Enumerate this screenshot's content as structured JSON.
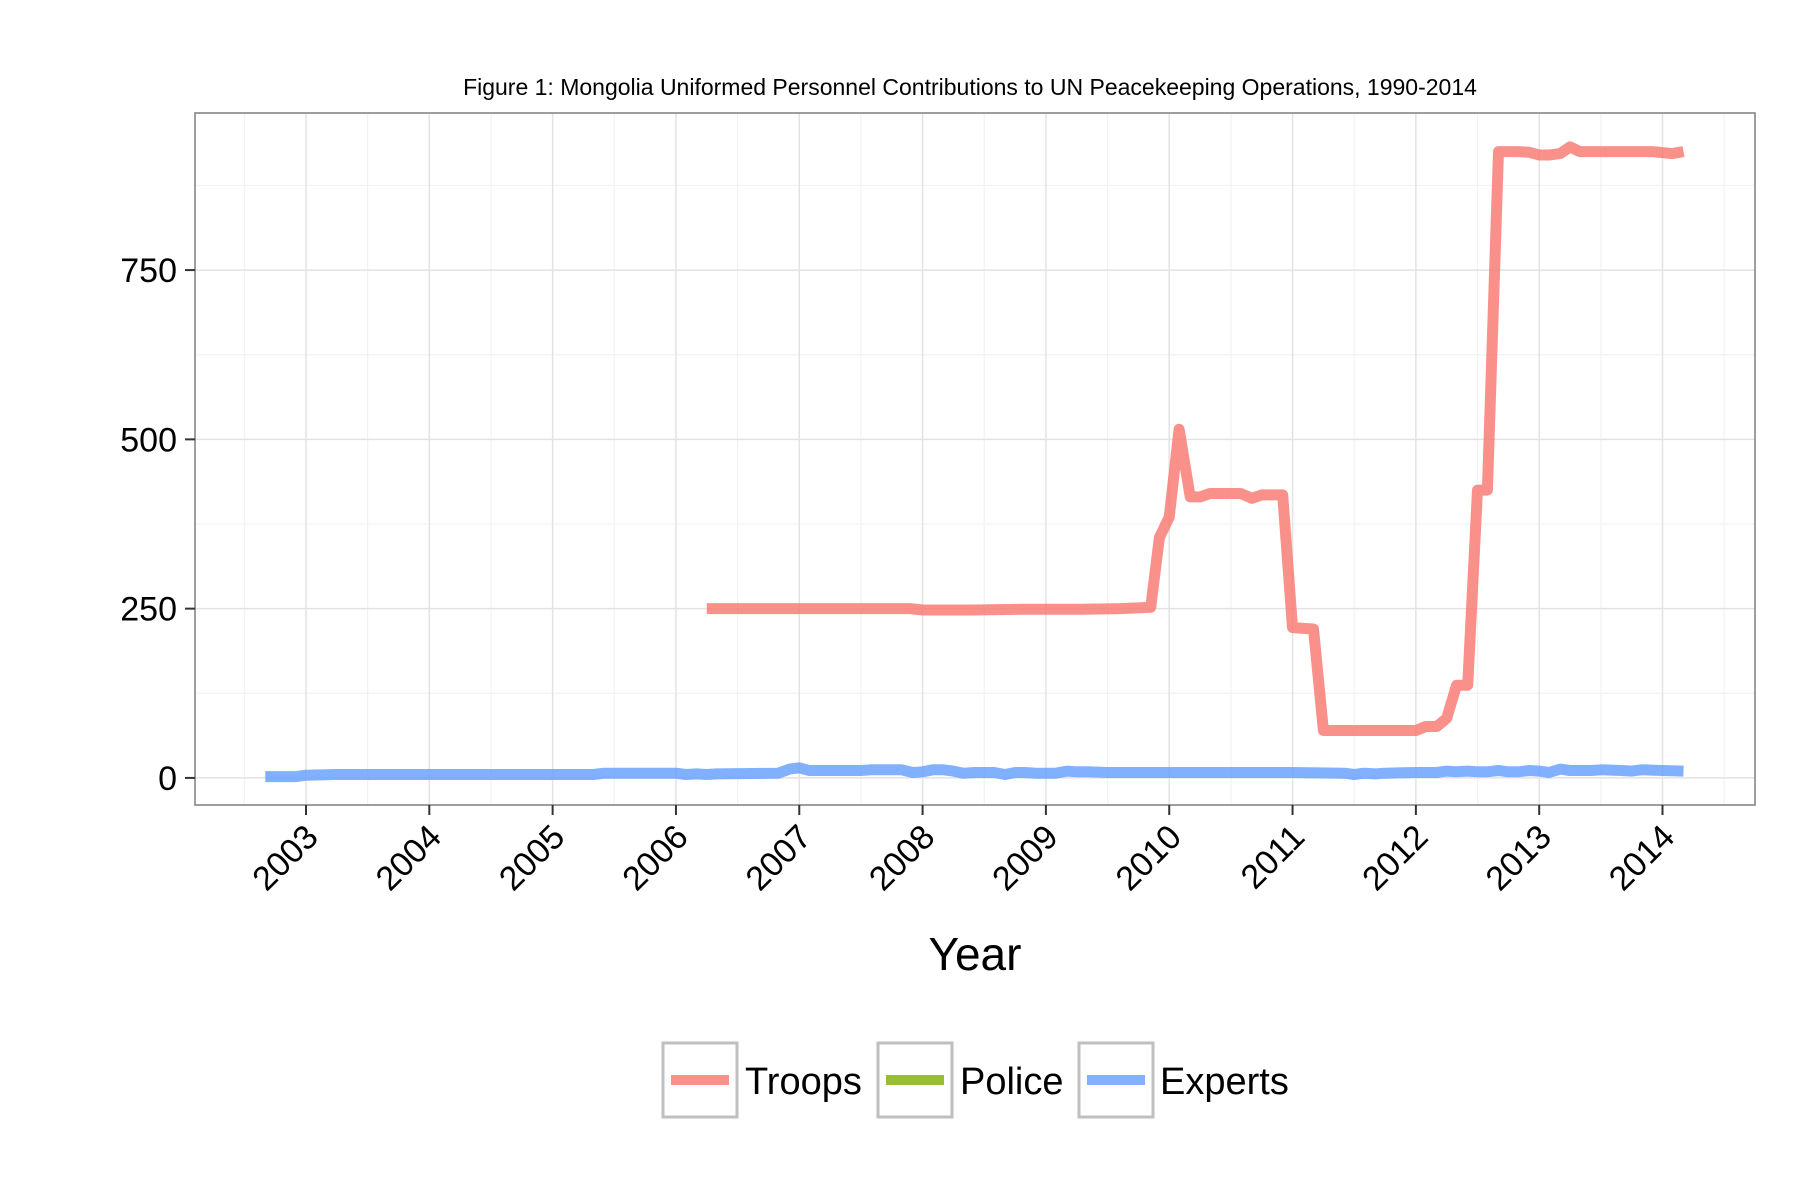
{
  "chart_data": {
    "type": "line",
    "title": "Figure 1: Mongolia Uniformed Personnel Contributions to UN Peacekeeping Operations, 1990-2014",
    "xlabel": "Year",
    "ylabel": "",
    "x_ticks": [
      "2003",
      "2004",
      "2005",
      "2006",
      "2007",
      "2008",
      "2009",
      "2010",
      "2011",
      "2012",
      "2013",
      "2014"
    ],
    "y_ticks": [
      0,
      250,
      500,
      750
    ],
    "xlim": [
      2002.1,
      2014.75
    ],
    "ylim": [
      -40,
      982
    ],
    "grid": true,
    "legend_position": "bottom",
    "series": [
      {
        "name": "Troops",
        "color": "#F8766D",
        "points": [
          [
            2006.25,
            250
          ],
          [
            2007.0,
            250
          ],
          [
            2007.5,
            250
          ],
          [
            2007.9,
            250
          ],
          [
            2008.0,
            248
          ],
          [
            2008.4,
            248
          ],
          [
            2008.8,
            249
          ],
          [
            2009.3,
            249
          ],
          [
            2009.6,
            250
          ],
          [
            2009.85,
            252
          ],
          [
            2009.92,
            355
          ],
          [
            2010.0,
            385
          ],
          [
            2010.08,
            515
          ],
          [
            2010.17,
            415
          ],
          [
            2010.25,
            415
          ],
          [
            2010.33,
            420
          ],
          [
            2010.58,
            420
          ],
          [
            2010.67,
            413
          ],
          [
            2010.75,
            418
          ],
          [
            2010.92,
            418
          ],
          [
            2011.0,
            222
          ],
          [
            2011.17,
            220
          ],
          [
            2011.25,
            70
          ],
          [
            2011.5,
            70
          ],
          [
            2011.75,
            70
          ],
          [
            2012.0,
            70
          ],
          [
            2012.08,
            76
          ],
          [
            2012.17,
            76
          ],
          [
            2012.25,
            88
          ],
          [
            2012.33,
            137
          ],
          [
            2012.42,
            137
          ],
          [
            2012.5,
            425
          ],
          [
            2012.58,
            425
          ],
          [
            2012.67,
            925
          ],
          [
            2012.83,
            925
          ],
          [
            2012.92,
            924
          ],
          [
            2013.0,
            920
          ],
          [
            2013.08,
            920
          ],
          [
            2013.17,
            922
          ],
          [
            2013.25,
            932
          ],
          [
            2013.33,
            925
          ],
          [
            2013.5,
            925
          ],
          [
            2013.75,
            925
          ],
          [
            2013.92,
            925
          ],
          [
            2014.08,
            922
          ],
          [
            2014.17,
            925
          ]
        ]
      },
      {
        "name": "Police",
        "color": "#7CAE00",
        "points": []
      },
      {
        "name": "Experts",
        "color": "#619CFF",
        "points": [
          [
            2002.67,
            2
          ],
          [
            2002.92,
            2
          ],
          [
            2003.0,
            4
          ],
          [
            2003.25,
            5
          ],
          [
            2004.0,
            5
          ],
          [
            2005.0,
            5
          ],
          [
            2005.33,
            5
          ],
          [
            2005.42,
            7
          ],
          [
            2005.5,
            7
          ],
          [
            2006.0,
            7
          ],
          [
            2006.08,
            5
          ],
          [
            2006.17,
            6
          ],
          [
            2006.25,
            5
          ],
          [
            2006.33,
            6
          ],
          [
            2006.83,
            7
          ],
          [
            2006.92,
            13
          ],
          [
            2007.0,
            15
          ],
          [
            2007.08,
            11
          ],
          [
            2007.5,
            11
          ],
          [
            2007.58,
            12
          ],
          [
            2007.83,
            12
          ],
          [
            2007.92,
            8
          ],
          [
            2008.0,
            9
          ],
          [
            2008.08,
            12
          ],
          [
            2008.17,
            12
          ],
          [
            2008.25,
            10
          ],
          [
            2008.33,
            7
          ],
          [
            2008.42,
            8
          ],
          [
            2008.58,
            8
          ],
          [
            2008.67,
            5
          ],
          [
            2008.75,
            8
          ],
          [
            2008.83,
            8
          ],
          [
            2008.92,
            7
          ],
          [
            2009.08,
            7
          ],
          [
            2009.17,
            10
          ],
          [
            2009.25,
            9
          ],
          [
            2009.33,
            9
          ],
          [
            2009.5,
            8
          ],
          [
            2010.0,
            8
          ],
          [
            2010.5,
            8
          ],
          [
            2011.0,
            8
          ],
          [
            2011.42,
            7
          ],
          [
            2011.5,
            5
          ],
          [
            2011.58,
            7
          ],
          [
            2011.67,
            6
          ],
          [
            2011.75,
            7
          ],
          [
            2012.0,
            8
          ],
          [
            2012.17,
            8
          ],
          [
            2012.25,
            10
          ],
          [
            2012.33,
            9
          ],
          [
            2012.42,
            10
          ],
          [
            2012.5,
            9
          ],
          [
            2012.58,
            9
          ],
          [
            2012.67,
            11
          ],
          [
            2012.75,
            9
          ],
          [
            2012.83,
            9
          ],
          [
            2012.92,
            11
          ],
          [
            2013.0,
            10
          ],
          [
            2013.08,
            8
          ],
          [
            2013.17,
            13
          ],
          [
            2013.25,
            11
          ],
          [
            2013.42,
            11
          ],
          [
            2013.5,
            12
          ],
          [
            2013.67,
            11
          ],
          [
            2013.75,
            10
          ],
          [
            2013.83,
            12
          ],
          [
            2014.0,
            11
          ],
          [
            2014.17,
            10
          ]
        ]
      }
    ]
  }
}
